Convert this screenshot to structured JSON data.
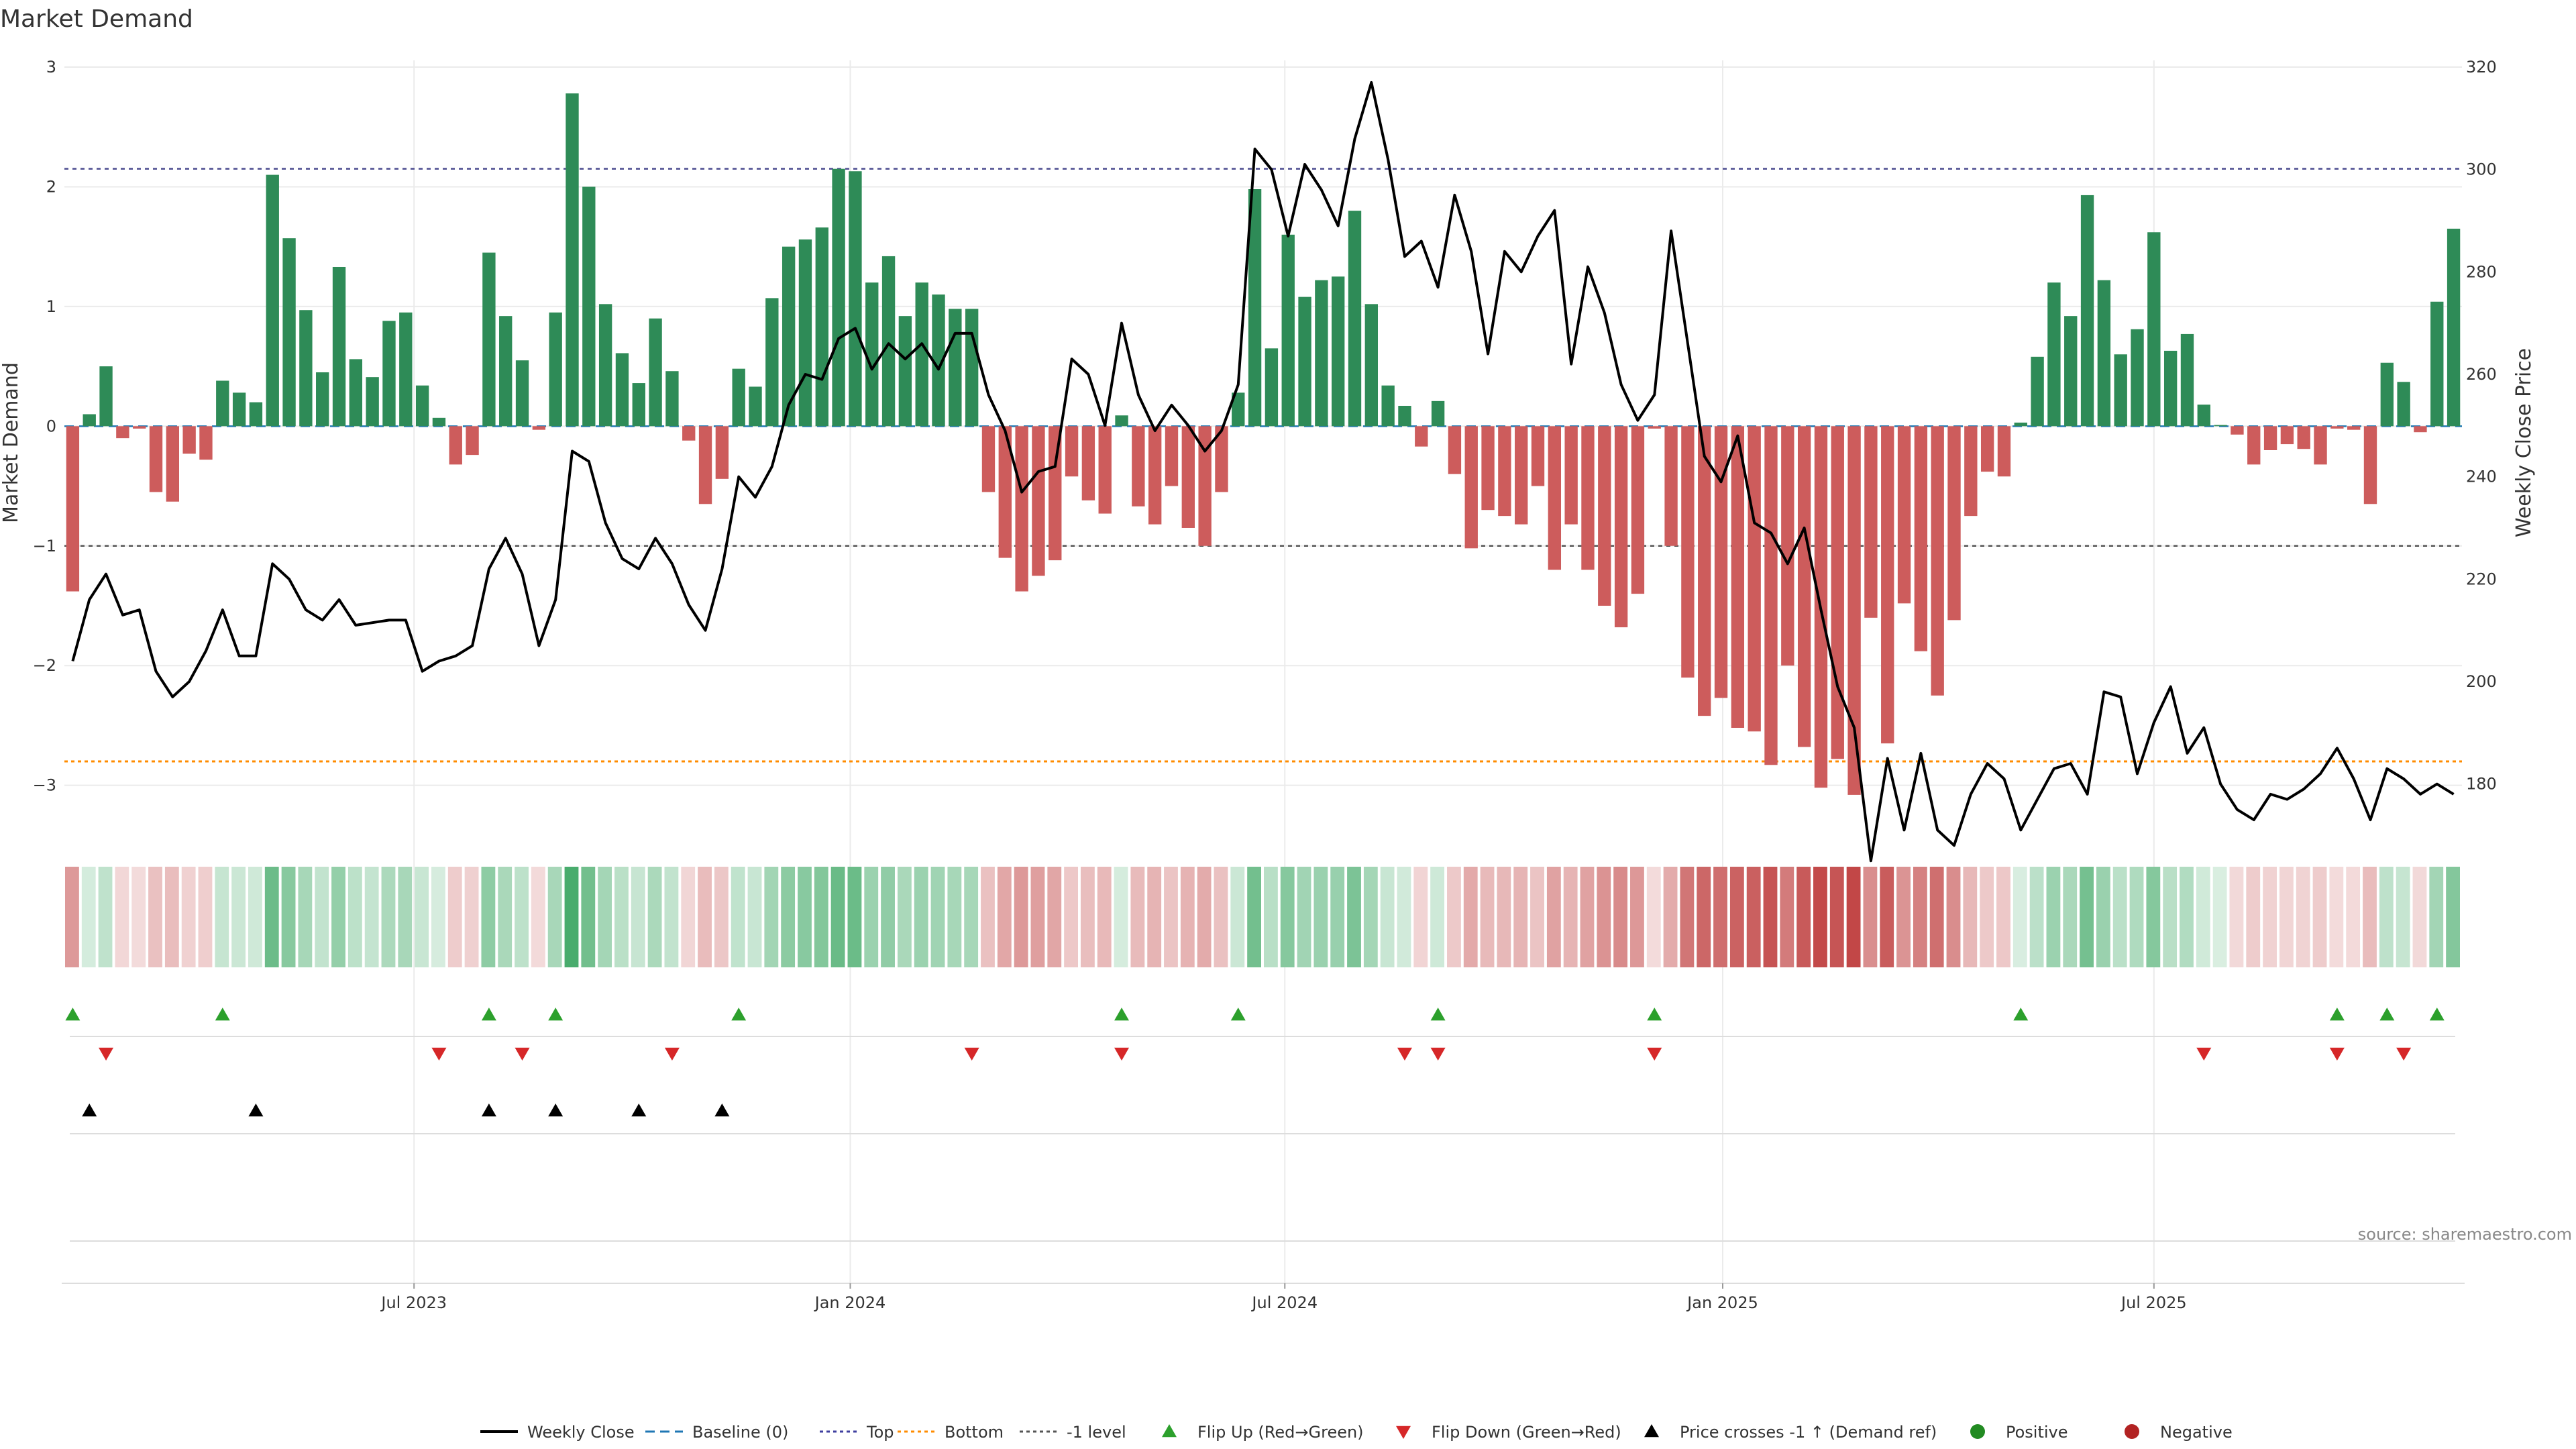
{
  "chart_data": {
    "type": "bar+line",
    "title": "Market Demand",
    "ylabel": "Market Demand",
    "y2label": "Weekly Close Price",
    "ylim": [
      -3.4,
      3
    ],
    "y2lim": [
      170,
      320
    ],
    "yticks": [
      3,
      2,
      1,
      0,
      -1,
      -2,
      -3
    ],
    "y2ticks": [
      320,
      300,
      280,
      260,
      240,
      220,
      200,
      180
    ],
    "xlim": [
      0,
      144
    ],
    "xticks": [
      {
        "label": "Jul 2023",
        "x": 21
      },
      {
        "label": "Jan 2024",
        "x": 47.2
      },
      {
        "label": "Jul 2024",
        "x": 73.3
      },
      {
        "label": "Jan 2025",
        "x": 99.6
      },
      {
        "label": "Jul 2025",
        "x": 125.5
      }
    ],
    "reference_lines": {
      "top": 2.15,
      "bottom": -2.8,
      "minus_one": -1,
      "baseline": 0
    },
    "demand": [
      -1.38,
      0.1,
      0.5,
      -0.1,
      -0.02,
      -0.55,
      -0.63,
      -0.23,
      -0.28,
      0.38,
      0.28,
      0.2,
      2.1,
      1.57,
      0.97,
      0.45,
      1.33,
      0.56,
      0.41,
      0.88,
      0.95,
      0.34,
      0.07,
      -0.32,
      -0.24,
      1.45,
      0.92,
      0.55,
      -0.03,
      0.95,
      2.78,
      2.0,
      1.02,
      0.61,
      0.36,
      0.9,
      0.46,
      -0.12,
      -0.65,
      -0.44,
      0.48,
      0.33,
      1.07,
      1.5,
      1.56,
      1.66,
      2.15,
      2.13,
      1.2,
      1.42,
      0.92,
      1.2,
      1.1,
      0.98,
      0.98,
      -0.55,
      -1.1,
      -1.38,
      -1.25,
      -1.12,
      -0.42,
      -0.62,
      -0.73,
      0.09,
      -0.67,
      -0.82,
      -0.5,
      -0.85,
      -1.0,
      -0.55,
      0.28,
      1.98,
      0.65,
      1.6,
      1.08,
      1.22,
      1.25,
      1.8,
      1.02,
      0.34,
      0.17,
      -0.17,
      0.21,
      -0.4,
      -1.02,
      -0.7,
      -0.75,
      -0.82,
      -0.5,
      -1.2,
      -0.82,
      -1.2,
      -1.5,
      -1.68,
      -1.4,
      -0.02,
      -1.0,
      -2.1,
      -2.42,
      -2.27,
      -2.52,
      -2.55,
      -2.83,
      -2.0,
      -2.68,
      -3.02,
      -2.78,
      -3.08,
      -1.6,
      -2.65,
      -1.48,
      -1.88,
      -2.25,
      -1.62,
      -0.75,
      -0.38,
      -0.42,
      0.03,
      0.58,
      1.2,
      0.92,
      1.93,
      1.22,
      0.6,
      0.81,
      1.62,
      0.63,
      0.77,
      0.18,
      0.01,
      -0.07,
      -0.32,
      -0.2,
      -0.15,
      -0.19,
      -0.32,
      -0.02,
      -0.03,
      -0.65,
      0.53,
      0.37,
      -0.05,
      1.04,
      1.65
    ],
    "weekly_close": [
      204,
      216,
      221,
      213,
      214,
      202,
      197,
      200,
      206,
      214,
      205,
      205,
      223,
      220,
      214,
      212,
      216,
      211,
      211.5,
      212,
      212,
      202,
      204,
      205,
      207,
      222,
      228,
      221,
      207,
      216,
      245,
      243,
      231,
      224,
      222,
      228,
      223,
      215,
      210,
      222,
      240,
      236,
      242,
      254,
      260,
      259,
      267,
      269,
      261,
      266,
      263,
      266,
      261,
      268,
      268,
      256,
      249,
      237,
      241,
      242,
      263,
      260,
      250,
      270,
      256,
      249,
      254,
      250,
      245,
      249,
      258,
      304,
      300,
      287,
      301,
      296,
      289,
      306,
      317,
      302,
      283,
      286,
      277,
      295,
      284,
      264,
      284,
      280,
      287,
      292,
      262,
      281,
      272,
      258,
      251,
      256,
      288,
      266,
      244,
      239,
      248,
      231,
      229,
      223,
      230,
      214,
      199,
      191,
      165,
      185,
      171,
      186,
      171,
      168,
      178,
      184,
      181,
      171,
      177,
      183,
      184,
      178,
      198,
      197,
      182,
      192,
      199,
      186,
      191,
      180,
      175,
      173,
      178,
      177,
      179,
      182,
      187,
      181,
      173,
      183,
      181,
      178,
      180,
      178
    ],
    "flip_up": [
      0.5,
      9.5,
      25.5,
      29.5,
      40.5,
      63.5,
      70.5,
      82.5,
      95.5,
      117.5,
      136.5,
      139.5,
      142.5
    ],
    "flip_down": [
      2.5,
      22.5,
      27.5,
      36.5,
      54.5,
      63.5,
      80.5,
      82.5,
      95.5,
      128.5,
      136.5,
      140.5
    ],
    "price_crosses_up": [
      1.5,
      11.5,
      25.5,
      29.5,
      34.5,
      39.5
    ],
    "legend": [
      {
        "label": "Weekly Close",
        "kind": "line",
        "color": "#000000"
      },
      {
        "label": "Baseline (0)",
        "kind": "dash",
        "color": "#1f77b4"
      },
      {
        "label": "Top",
        "kind": "dot",
        "color": "#3f3f9f"
      },
      {
        "label": "Bottom",
        "kind": "dot",
        "color": "#ff8c00"
      },
      {
        "label": "-1 level",
        "kind": "dot",
        "color": "#555555"
      },
      {
        "label": "Flip Up (Red→Green)",
        "kind": "tri-up",
        "color": "#2ca02c"
      },
      {
        "label": "Flip Down (Green→Red)",
        "kind": "tri-down",
        "color": "#d62728"
      },
      {
        "label": "Price crosses -1 ↑ (Demand ref)",
        "kind": "tri-up",
        "color": "#000000"
      },
      {
        "label": "Positive",
        "kind": "dot-circle",
        "color": "#228b22"
      },
      {
        "label": "Negative",
        "kind": "dot-circle",
        "color": "#b22222"
      }
    ],
    "source": "source: sharemaestro.com"
  },
  "colors": {
    "positive_bar": "#2e8b57",
    "negative_bar": "#cd5c5c",
    "grid": "#ebebeb"
  }
}
